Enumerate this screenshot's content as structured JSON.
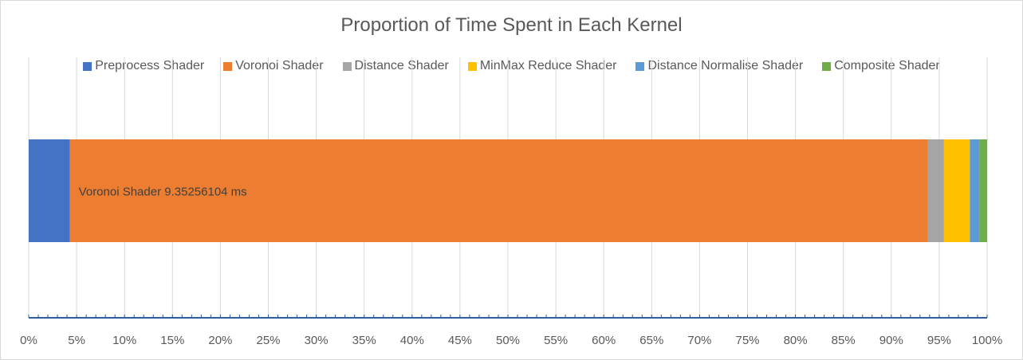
{
  "chart_data": {
    "type": "bar",
    "orientation": "horizontal",
    "stacked": "100%",
    "title": "Proportion of Time Spent in Each Kernel",
    "xlim": [
      0,
      100
    ],
    "x_tick_labels": [
      "0%",
      "5%",
      "10%",
      "15%",
      "20%",
      "25%",
      "30%",
      "35%",
      "40%",
      "45%",
      "50%",
      "55%",
      "60%",
      "65%",
      "70%",
      "75%",
      "80%",
      "85%",
      "90%",
      "95%",
      "100%"
    ],
    "grid": true,
    "legend_position": "top",
    "series": [
      {
        "name": "Preprocess Shader",
        "value_percent": 4.3,
        "color": "#4472c4"
      },
      {
        "name": "Voronoi Shader",
        "value_percent": 89.5,
        "color": "#ed7d31"
      },
      {
        "name": "Distance Shader",
        "value_percent": 1.7,
        "color": "#a5a5a5"
      },
      {
        "name": "MinMax Reduce Shader",
        "value_percent": 2.7,
        "color": "#ffc000"
      },
      {
        "name": "Distance Normalise Shader",
        "value_percent": 1.0,
        "color": "#5b9bd5"
      },
      {
        "name": "Composite Shader",
        "value_percent": 0.8,
        "color": "#70ad47"
      }
    ],
    "annotations": [
      {
        "series": "Voronoi Shader",
        "text": "Voronoi Shader 9.35256104 ms"
      }
    ]
  }
}
